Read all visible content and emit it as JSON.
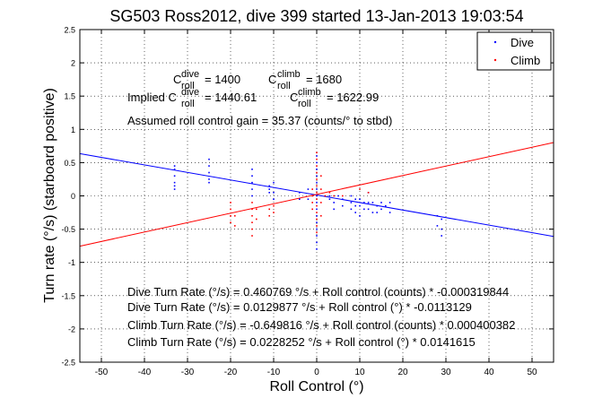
{
  "chart_data": {
    "type": "scatter",
    "title": "SG503 Ross2012, dive 399 started 13-Jan-2013 19:03:54",
    "xlabel": "Roll Control (°)",
    "ylabel": "Turn rate (°/s) (starboard positive)",
    "xlim": [
      -55,
      55
    ],
    "ylim": [
      -2.5,
      2.5
    ],
    "xticks": [
      -50,
      -40,
      -30,
      -20,
      -10,
      0,
      10,
      20,
      30,
      40,
      50
    ],
    "yticks": [
      2.5,
      2,
      1.5,
      1,
      0.5,
      0,
      -0.5,
      -1,
      -1.5,
      -2,
      -2.5
    ],
    "ytick_labels": [
      "2.5",
      "2",
      "1.5",
      "1",
      "0.5",
      "0",
      "-0.5",
      "-1",
      "-1.5",
      "-2",
      "-2.5"
    ],
    "grid": true,
    "legend_position": "top-right",
    "colors": {
      "dive": "#0000ff",
      "climb": "#ff0000"
    },
    "series": [
      {
        "name": "Dive",
        "style": "points",
        "points": [
          [
            -33,
            0.45
          ],
          [
            -33,
            0.4
          ],
          [
            -33,
            0.3
          ],
          [
            -33,
            0.2
          ],
          [
            -33,
            0.15
          ],
          [
            -33,
            0.1
          ],
          [
            -25,
            0.55
          ],
          [
            -25,
            0.45
          ],
          [
            -25,
            0.35
          ],
          [
            -25,
            0.25
          ],
          [
            -25,
            0.2
          ],
          [
            -15,
            0.4
          ],
          [
            -15,
            0.3
          ],
          [
            -15,
            0.2
          ],
          [
            -15,
            0.1
          ],
          [
            -15,
            0.0
          ],
          [
            -11,
            0.15
          ],
          [
            -11,
            0.1
          ],
          [
            -11,
            0.05
          ],
          [
            -10,
            0.2
          ],
          [
            -10,
            0.05
          ],
          [
            -10,
            -0.05
          ],
          [
            -4,
            0.05
          ],
          [
            -4,
            -0.05
          ],
          [
            -2,
            0.1
          ],
          [
            -2,
            -0.05
          ],
          [
            0,
            0.6
          ],
          [
            0,
            0.5
          ],
          [
            0,
            0.4
          ],
          [
            0,
            0.3
          ],
          [
            0,
            0.2
          ],
          [
            0,
            0.1
          ],
          [
            0,
            0.0
          ],
          [
            0,
            -0.1
          ],
          [
            0,
            -0.2
          ],
          [
            0,
            -0.3
          ],
          [
            0,
            -0.4
          ],
          [
            0,
            -0.5
          ],
          [
            0,
            -0.6
          ],
          [
            0,
            -0.7
          ],
          [
            0,
            -0.8
          ],
          [
            3,
            -0.05
          ],
          [
            3,
            0.0
          ],
          [
            4,
            -0.1
          ],
          [
            4,
            -0.2
          ],
          [
            5,
            0.0
          ],
          [
            6,
            -0.05
          ],
          [
            6,
            -0.15
          ],
          [
            8,
            0.0
          ],
          [
            8,
            -0.1
          ],
          [
            8,
            -0.2
          ],
          [
            9,
            -0.05
          ],
          [
            9,
            -0.15
          ],
          [
            9,
            -0.25
          ],
          [
            10,
            -0.05
          ],
          [
            10,
            -0.15
          ],
          [
            10,
            -0.3
          ],
          [
            11,
            -0.1
          ],
          [
            11,
            -0.2
          ],
          [
            12,
            0.05
          ],
          [
            12,
            -0.1
          ],
          [
            12,
            -0.2
          ],
          [
            13,
            -0.1
          ],
          [
            13,
            -0.25
          ],
          [
            14,
            -0.15
          ],
          [
            14,
            -0.25
          ],
          [
            15,
            -0.1
          ],
          [
            15,
            -0.2
          ],
          [
            16,
            -0.15
          ],
          [
            17,
            -0.1
          ],
          [
            17,
            -0.25
          ],
          [
            28,
            -0.3
          ],
          [
            28,
            -0.45
          ],
          [
            29,
            -0.35
          ],
          [
            29,
            -0.5
          ],
          [
            29,
            -0.6
          ]
        ]
      },
      {
        "name": "Climb",
        "style": "points",
        "points": [
          [
            -20,
            -0.1
          ],
          [
            -20,
            -0.2
          ],
          [
            -20,
            -0.3
          ],
          [
            -20,
            -0.4
          ],
          [
            -19,
            -0.3
          ],
          [
            -19,
            -0.45
          ],
          [
            -15,
            -0.1
          ],
          [
            -15,
            -0.2
          ],
          [
            -15,
            -0.3
          ],
          [
            -15,
            -0.4
          ],
          [
            -15,
            -0.5
          ],
          [
            -15,
            -0.6
          ],
          [
            -14,
            -0.2
          ],
          [
            -14,
            -0.35
          ],
          [
            -11,
            -0.2
          ],
          [
            -11,
            -0.3
          ],
          [
            -10,
            -0.15
          ],
          [
            -10,
            -0.25
          ],
          [
            -1,
            0.0
          ],
          [
            -1,
            -0.1
          ],
          [
            -1,
            -0.2
          ],
          [
            -1,
            0.1
          ],
          [
            0,
            0.65
          ],
          [
            0,
            0.55
          ],
          [
            0,
            0.45
          ],
          [
            0,
            0.35
          ],
          [
            0,
            0.25
          ],
          [
            0,
            0.15
          ],
          [
            0,
            0.05
          ],
          [
            0,
            -0.05
          ],
          [
            0,
            -0.15
          ],
          [
            0,
            -0.25
          ],
          [
            0,
            -0.35
          ],
          [
            0,
            -0.45
          ],
          [
            0,
            -0.55
          ],
          [
            1,
            0.3
          ],
          [
            1,
            0.1
          ],
          [
            1,
            -0.1
          ],
          [
            1,
            -0.3
          ],
          [
            2,
            0.0
          ],
          [
            3,
            0.05
          ],
          [
            4,
            0.0
          ],
          [
            6,
            0.0
          ],
          [
            10,
            0.1
          ],
          [
            12,
            0.05
          ]
        ]
      },
      {
        "name": "Dive fit",
        "style": "line",
        "color": "#0000ff",
        "intercept": 0.0129877,
        "slope": -0.0113129
      },
      {
        "name": "Climb fit",
        "style": "line",
        "color": "#ff0000",
        "intercept": 0.0228252,
        "slope": 0.0141615
      }
    ],
    "legend": [
      {
        "label": "Dive",
        "color": "#0000ff"
      },
      {
        "label": "Climb",
        "color": "#ff0000"
      }
    ],
    "annotations": {
      "c_dive_label": "C",
      "c_dive_sup": "dive",
      "c_dive_sub": "roll",
      "c_dive_value": "= 1400",
      "c_climb_label": "C",
      "c_climb_sup": "climb",
      "c_climb_sub": "roll",
      "c_climb_value": "= 1680",
      "implied_prefix": "Implied C",
      "implied_dive_sup": "dive",
      "implied_dive_sub": "roll",
      "implied_dive_value": "= 1440.61",
      "implied_climb_label": "C",
      "implied_climb_sup": "climb",
      "implied_climb_sub": "roll",
      "implied_climb_value": "= 1622.99",
      "assumed_gain": "Assumed roll control gain = 35.37 (counts/° to stbd)",
      "dive_counts_eq": "Dive Turn Rate (°/s) = 0.460769 °/s + Roll control (counts) * -0.000319844",
      "dive_deg_eq": "Dive Turn Rate (°/s) = 0.0129877 °/s + Roll control (°) * -0.0113129",
      "climb_counts_eq": "Climb Turn Rate (°/s) = -0.649816 °/s + Roll control (counts) * 0.000400382",
      "climb_deg_eq": "Climb Turn Rate (°/s) = 0.0228252 °/s + Roll control (°) * 0.0141615"
    }
  }
}
